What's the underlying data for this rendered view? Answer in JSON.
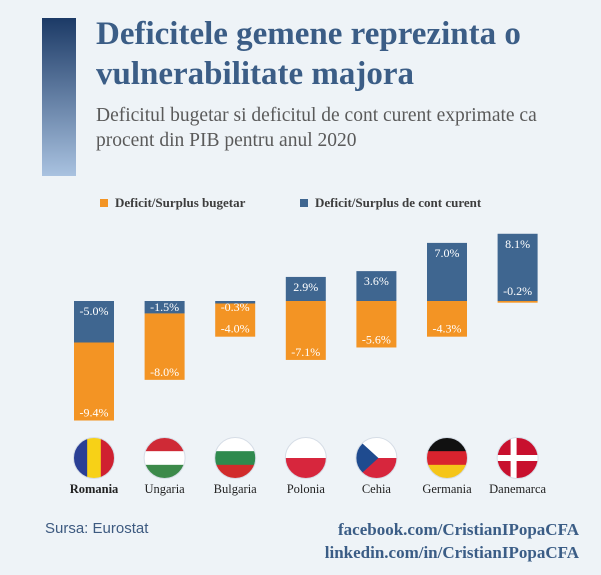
{
  "title": "Deficitele gemene reprezinta o vulnerabilitate majora",
  "subtitle": "Deficitul bugetar si deficitul de cont curent exprimate ca procent din PIB pentru anul 2020",
  "source": "Sursa: Eurostat",
  "social": {
    "facebook": "facebook.com/CristianIPopaCFA",
    "linkedin": "linkedin.com/in/CristianIPopaCFA"
  },
  "colors": {
    "budget": "#f39424",
    "current_account": "#3f6690",
    "title": "#3b5d86"
  },
  "chart_data": {
    "type": "bar",
    "stacked": true,
    "categories": [
      "Romania",
      "Ungaria",
      "Bulgaria",
      "Polonia",
      "Cehia",
      "Germania",
      "Danemarca"
    ],
    "highlight_category": "Romania",
    "series": [
      {
        "name": "Deficit/Surplus bugetar",
        "values": [
          -9.4,
          -8.0,
          -4.0,
          -7.1,
          -5.6,
          -4.3,
          -0.2
        ],
        "labels": [
          "-9.4%",
          "-8.0%",
          "-4.0%",
          "-7.1%",
          "-5.6%",
          "-4.3%",
          "-0.2%"
        ]
      },
      {
        "name": "Deficit/Surplus de cont curent",
        "values": [
          -5.0,
          -1.5,
          -0.3,
          2.9,
          3.6,
          7.0,
          8.1
        ],
        "labels": [
          "-5.0%",
          "-1.5%",
          "-0.3%",
          "2.9%",
          "3.6%",
          "7.0%",
          "8.1%"
        ]
      }
    ],
    "legend_position": "top",
    "grid": false,
    "flags": [
      "romania-flag-icon",
      "hungary-flag-icon",
      "bulgaria-flag-icon",
      "poland-flag-icon",
      "czechia-flag-icon",
      "germany-flag-icon",
      "denmark-flag-icon"
    ]
  }
}
